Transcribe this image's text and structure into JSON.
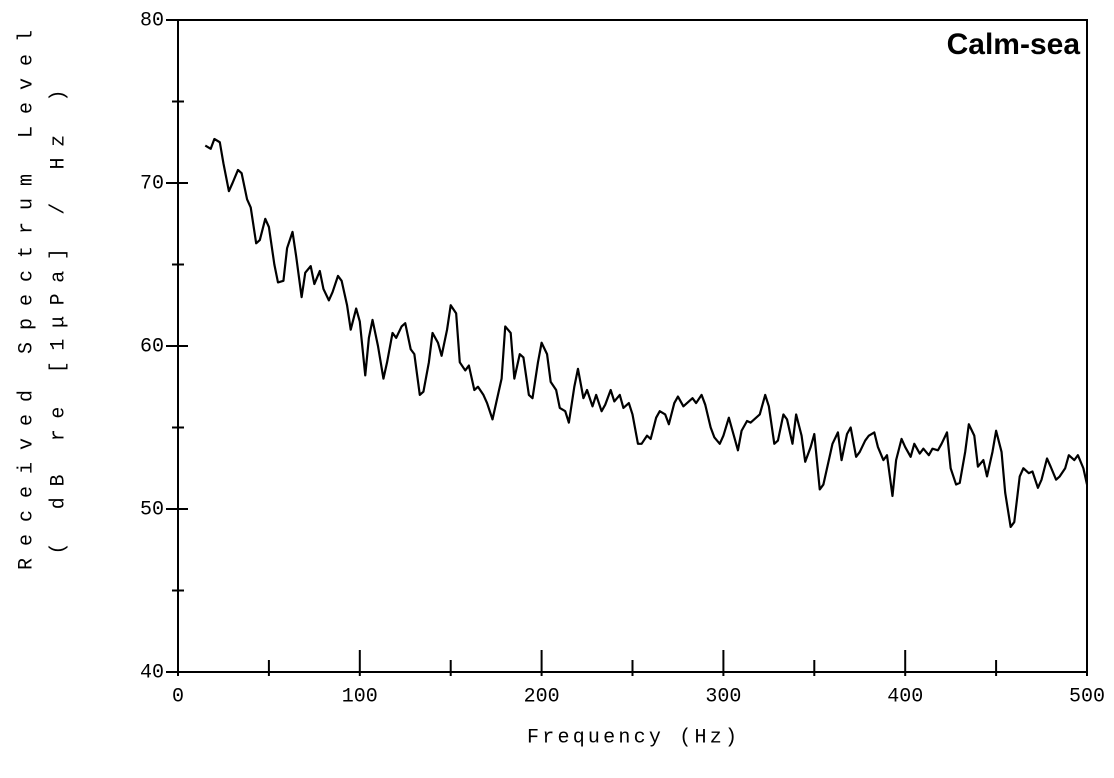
{
  "chart_data": {
    "type": "line",
    "annotation": "Calm-sea",
    "x_label": "Frequency (Hz)",
    "y_label": [
      "Received Spectrum Level",
      "( dB re [1μPa] / Hz )"
    ],
    "xlim": [
      0,
      500
    ],
    "ylim": [
      40,
      80
    ],
    "xticks": [
      0,
      100,
      200,
      300,
      400,
      500
    ],
    "yticks": [
      40,
      50,
      60,
      70,
      80
    ],
    "xminorticks": [
      50,
      150,
      250,
      350,
      450
    ],
    "yminorticks": [
      45,
      55,
      65,
      75
    ],
    "color": "#000000",
    "x": [
      15,
      18,
      20,
      23,
      25,
      28,
      30,
      33,
      35,
      38,
      40,
      43,
      45,
      48,
      50,
      53,
      55,
      58,
      60,
      63,
      65,
      68,
      70,
      73,
      75,
      78,
      80,
      83,
      85,
      88,
      90,
      93,
      95,
      98,
      100,
      103,
      105,
      107,
      110,
      113,
      115,
      118,
      120,
      123,
      125,
      128,
      130,
      133,
      135,
      138,
      140,
      143,
      145,
      148,
      150,
      153,
      155,
      158,
      160,
      163,
      165,
      168,
      170,
      173,
      175,
      178,
      180,
      183,
      185,
      188,
      190,
      193,
      195,
      198,
      200,
      203,
      205,
      208,
      210,
      213,
      215,
      218,
      220,
      223,
      225,
      228,
      230,
      233,
      235,
      238,
      240,
      243,
      245,
      248,
      250,
      253,
      255,
      258,
      260,
      263,
      265,
      268,
      270,
      273,
      275,
      278,
      280,
      283,
      285,
      288,
      290,
      293,
      295,
      298,
      300,
      303,
      305,
      308,
      310,
      313,
      315,
      318,
      320,
      323,
      325,
      328,
      330,
      333,
      335,
      338,
      340,
      343,
      345,
      348,
      350,
      353,
      355,
      358,
      360,
      363,
      365,
      368,
      370,
      373,
      375,
      378,
      380,
      383,
      385,
      388,
      390,
      393,
      395,
      398,
      400,
      403,
      405,
      408,
      410,
      413,
      415,
      418,
      420,
      423,
      425,
      428,
      430,
      433,
      435,
      438,
      440,
      443,
      445,
      448,
      450,
      453,
      455,
      458,
      460,
      463,
      465,
      468,
      470,
      473,
      475,
      478,
      480,
      483,
      485,
      488,
      490,
      493,
      495,
      498,
      500
    ],
    "values": [
      72.3,
      72.1,
      72.7,
      72.5,
      71.2,
      69.5,
      70.0,
      70.8,
      70.6,
      69.0,
      68.5,
      66.3,
      66.5,
      67.8,
      67.3,
      65.0,
      63.9,
      64.0,
      66.0,
      67.0,
      65.5,
      63.0,
      64.5,
      64.9,
      63.8,
      64.6,
      63.5,
      62.8,
      63.3,
      64.3,
      64.0,
      62.5,
      61.0,
      62.3,
      61.5,
      58.2,
      60.5,
      61.6,
      60.0,
      58.0,
      59.0,
      60.8,
      60.5,
      61.2,
      61.4,
      59.8,
      59.5,
      57.0,
      57.2,
      59.0,
      60.8,
      60.2,
      59.4,
      61.0,
      62.5,
      62.0,
      59.0,
      58.5,
      58.8,
      57.3,
      57.5,
      57.0,
      56.5,
      55.5,
      56.5,
      58.0,
      61.2,
      60.8,
      58.0,
      59.5,
      59.3,
      57.0,
      56.8,
      59.0,
      60.2,
      59.5,
      57.8,
      57.3,
      56.2,
      56.0,
      55.3,
      57.5,
      58.6,
      56.8,
      57.3,
      56.3,
      57.0,
      56.0,
      56.4,
      57.3,
      56.6,
      57.0,
      56.2,
      56.5,
      55.8,
      54.0,
      54.0,
      54.5,
      54.3,
      55.6,
      56.0,
      55.8,
      55.2,
      56.5,
      56.9,
      56.3,
      56.5,
      56.8,
      56.5,
      57.0,
      56.4,
      55.0,
      54.4,
      54.0,
      54.5,
      55.6,
      54.8,
      53.6,
      54.8,
      55.4,
      55.3,
      55.6,
      55.8,
      57.0,
      56.3,
      54.0,
      54.2,
      55.8,
      55.5,
      54.0,
      55.8,
      54.5,
      52.9,
      53.8,
      54.6,
      51.2,
      51.5,
      53.0,
      54.0,
      54.7,
      53.0,
      54.6,
      55.0,
      53.2,
      53.5,
      54.2,
      54.5,
      54.7,
      53.8,
      53.0,
      53.3,
      50.8,
      53.0,
      54.3,
      53.8,
      53.2,
      54.0,
      53.4,
      53.7,
      53.3,
      53.7,
      53.6,
      54.0,
      54.7,
      52.5,
      51.5,
      51.6,
      53.5,
      55.2,
      54.5,
      52.6,
      53.0,
      52.0,
      53.5,
      54.8,
      53.5,
      51.0,
      48.9,
      49.2,
      52.0,
      52.5,
      52.2,
      52.3,
      51.3,
      51.8,
      53.1,
      52.6,
      51.8,
      52.0,
      52.5,
      53.3,
      53.0,
      53.3,
      52.5,
      51.5
    ]
  }
}
